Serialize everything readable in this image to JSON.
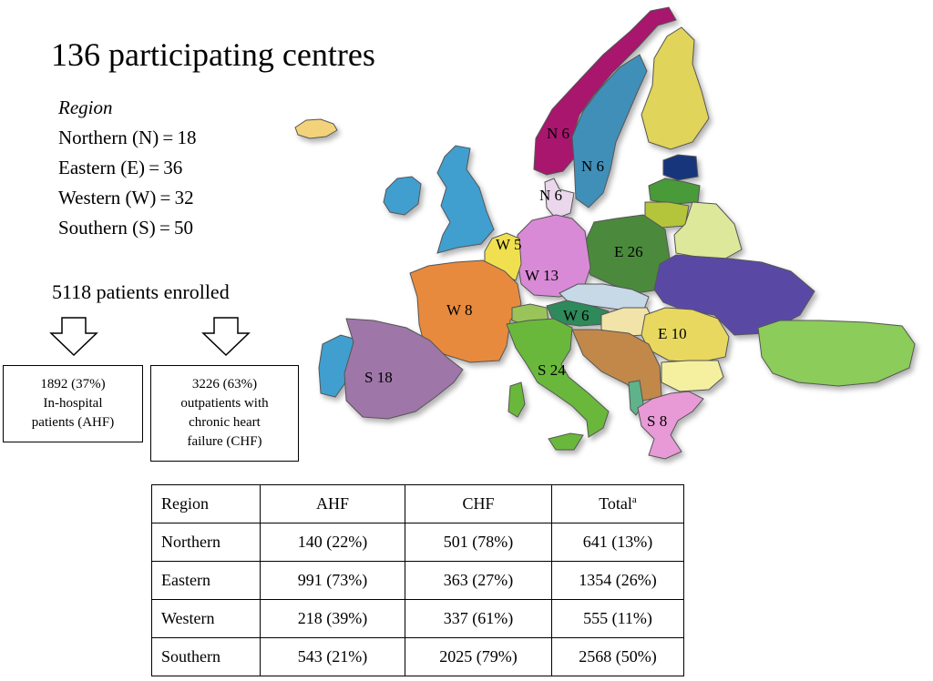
{
  "title": "136 participating centres",
  "region_list": {
    "heading": "Region",
    "items": [
      {
        "label": "Northern (N) = 18"
      },
      {
        "label": "Eastern (E) = 36"
      },
      {
        "label": "Western (W) = 32"
      },
      {
        "label": "Southern (S) = 50"
      }
    ]
  },
  "enrolled": "5118 patients enrolled",
  "boxes": {
    "ahf": {
      "line1": "1892 (37%)",
      "line2": "In-hospital",
      "line3": "patients (AHF)"
    },
    "chf": {
      "line1": "3226 (63%)",
      "line2": "outpatients with",
      "line3": "chronic heart",
      "line4": "failure (CHF)"
    }
  },
  "map_labels": {
    "norway": "N 6",
    "sweden": "N 6",
    "denmark": "N 6",
    "benelux": "W 5",
    "germany": "W 13",
    "poland": "E 26",
    "france": "W 8",
    "austria": "W 6",
    "romania": "E 10",
    "spain": "S 18",
    "italy": "S 24",
    "greece": "S 8"
  },
  "table": {
    "headers": {
      "region": "Region",
      "ahf": "AHF",
      "chf": "CHF",
      "total": "Total",
      "total_sup": "a"
    },
    "rows": [
      {
        "region": "Northern",
        "ahf": "140 (22%)",
        "chf": "501 (78%)",
        "total": "641 (13%)"
      },
      {
        "region": "Eastern",
        "ahf": "991 (73%)",
        "chf": "363 (27%)",
        "total": "1354 (26%)"
      },
      {
        "region": "Western",
        "ahf": "218 (39%)",
        "chf": "337 (61%)",
        "total": "555 (11%)"
      },
      {
        "region": "Southern",
        "ahf": "543 (21%)",
        "chf": "2025 (79%)",
        "total": "2568 (50%)"
      }
    ]
  }
}
